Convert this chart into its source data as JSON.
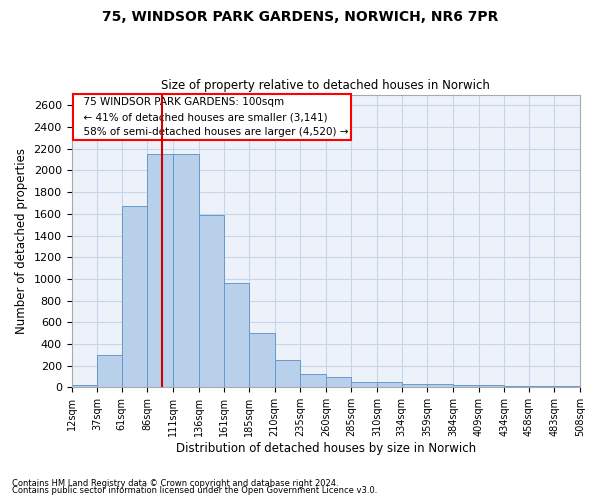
{
  "title1": "75, WINDSOR PARK GARDENS, NORWICH, NR6 7PR",
  "title2": "Size of property relative to detached houses in Norwich",
  "xlabel": "Distribution of detached houses by size in Norwich",
  "ylabel": "Number of detached properties",
  "footer1": "Contains HM Land Registry data © Crown copyright and database right 2024.",
  "footer2": "Contains public sector information licensed under the Open Government Licence v3.0.",
  "annotation_line1": "75 WINDSOR PARK GARDENS: 100sqm",
  "annotation_line2": "← 41% of detached houses are smaller (3,141)",
  "annotation_line3": "58% of semi-detached houses are larger (4,520) →",
  "property_size": 100,
  "bar_color": "#b8d0ea",
  "bar_edgecolor": "#6699cc",
  "redline_color": "#cc0000",
  "grid_color": "#c8d4e8",
  "background_color": "#edf2fa",
  "bins": [
    12,
    37,
    61,
    86,
    111,
    136,
    161,
    185,
    210,
    235,
    260,
    285,
    310,
    334,
    359,
    384,
    409,
    434,
    458,
    483,
    508
  ],
  "values": [
    25,
    300,
    1670,
    2150,
    2150,
    1590,
    960,
    500,
    250,
    120,
    100,
    50,
    50,
    30,
    35,
    20,
    20,
    15,
    15,
    10,
    25
  ],
  "ylim": [
    0,
    2700
  ],
  "yticks": [
    0,
    200,
    400,
    600,
    800,
    1000,
    1200,
    1400,
    1600,
    1800,
    2000,
    2200,
    2400,
    2600
  ]
}
